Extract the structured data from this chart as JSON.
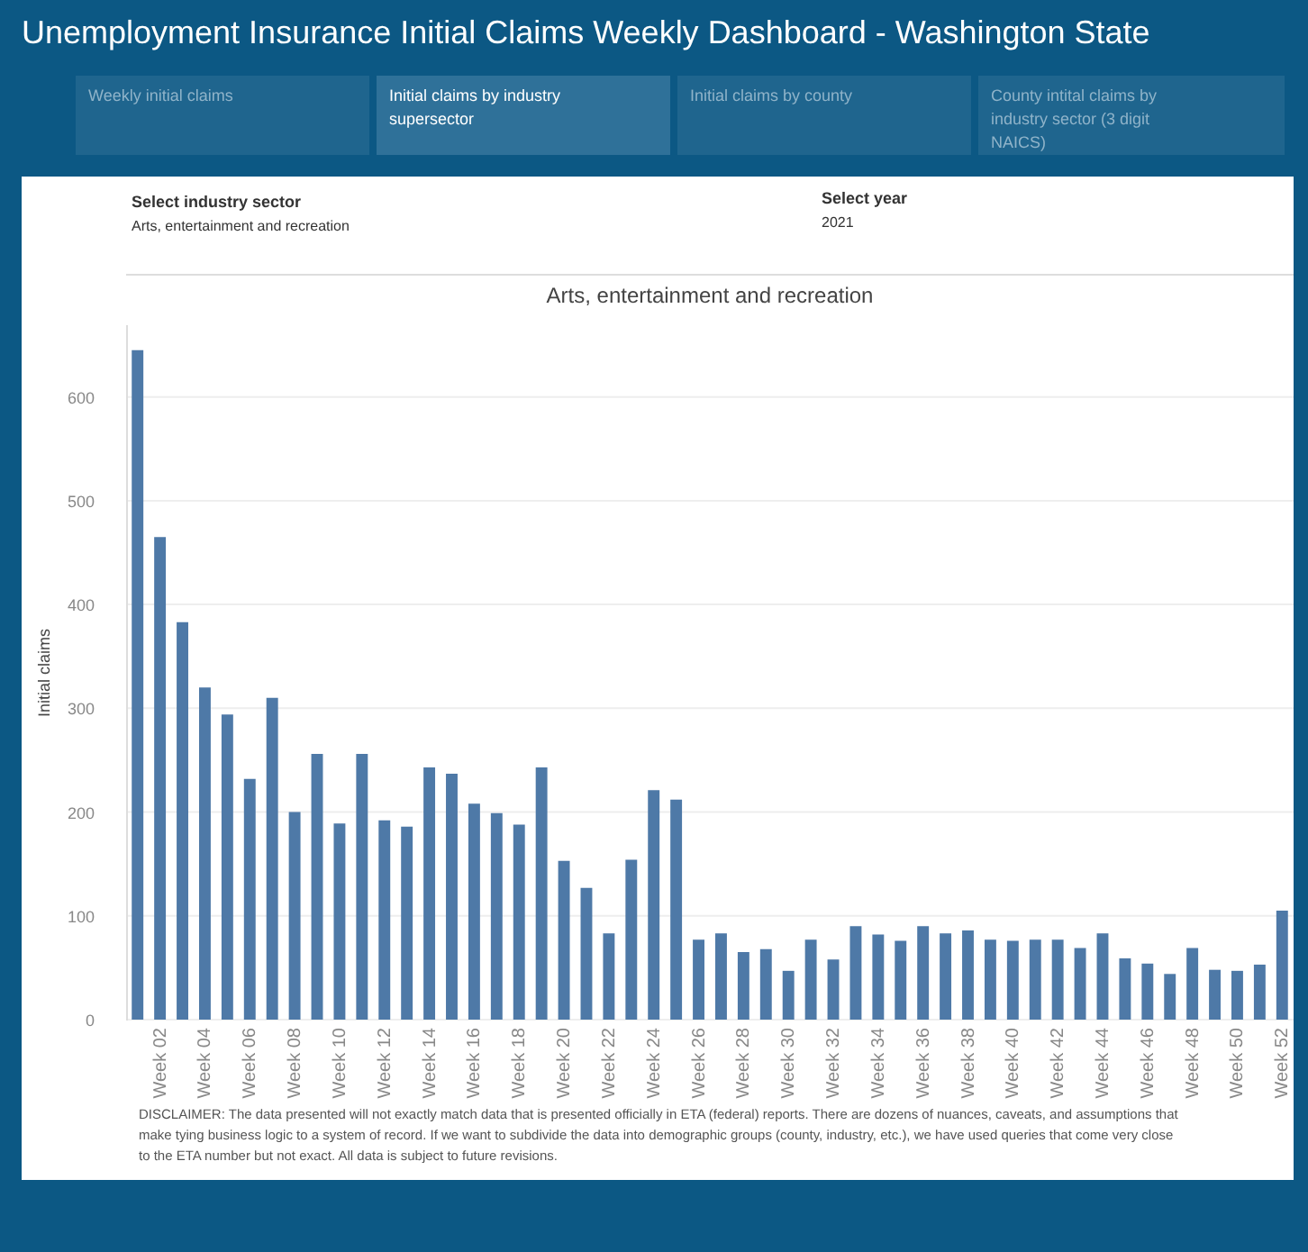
{
  "chart_data": {
    "type": "bar",
    "title": "Unemployment Insurance Initial Claims Weekly Dashboard  - Washington State",
    "subtitle": "Arts, entertainment and recreation",
    "ylabel": "Initial claims",
    "categories": [
      null,
      "Week 02",
      null,
      "Week 04",
      null,
      "Week 06",
      null,
      "Week 08",
      null,
      "Week 10",
      null,
      "Week 12",
      null,
      "Week 14",
      null,
      "Week 16",
      null,
      "Week 18",
      null,
      "Week 20",
      null,
      "Week 22",
      null,
      "Week 24",
      null,
      "Week 26",
      null,
      "Week 28",
      null,
      "Week 30",
      null,
      "Week 32",
      null,
      "Week 34",
      null,
      "Week 36",
      null,
      "Week 38",
      null,
      "Week 40",
      null,
      "Week 42",
      null,
      "Week 44",
      null,
      "Week 46",
      null,
      "Week 48",
      null,
      "Week 50",
      null,
      "Week 52"
    ],
    "values": [
      645,
      465,
      383,
      320,
      294,
      232,
      310,
      200,
      256,
      189,
      256,
      192,
      186,
      243,
      237,
      208,
      199,
      188,
      243,
      153,
      127,
      83,
      154,
      221,
      212,
      77,
      83,
      65,
      68,
      47,
      77,
      58,
      90,
      82,
      76,
      90,
      83,
      86,
      77,
      76,
      77,
      77,
      69,
      83,
      59,
      54,
      44,
      69,
      48,
      47,
      53,
      105
    ],
    "color": "#4e79a7",
    "ylim": [
      0,
      670
    ],
    "yticks": [
      0,
      100,
      200,
      300,
      400,
      500,
      600
    ],
    "grid": "y",
    "annotations": [
      "Weekly initial claims",
      "Initial claims by industry supersector",
      "Initial claims by county",
      "County intital claims by industry sector (3 digit NAICS)",
      "Select industry sector",
      "Arts, entertainment and recreation",
      "Select year",
      "2021",
      "DISCLAIMER: The data presented will not exactly match data that is presented officially in ETA (federal) reports. There are dozens of nuances, caveats, and assumptions that make tying business logic to a system of record. If we want to subdivide the data into demographic groups (county, industry, etc.), we have used queries that come very close to the ETA number but not exact.  All data is subject to future revisions."
    ]
  }
}
